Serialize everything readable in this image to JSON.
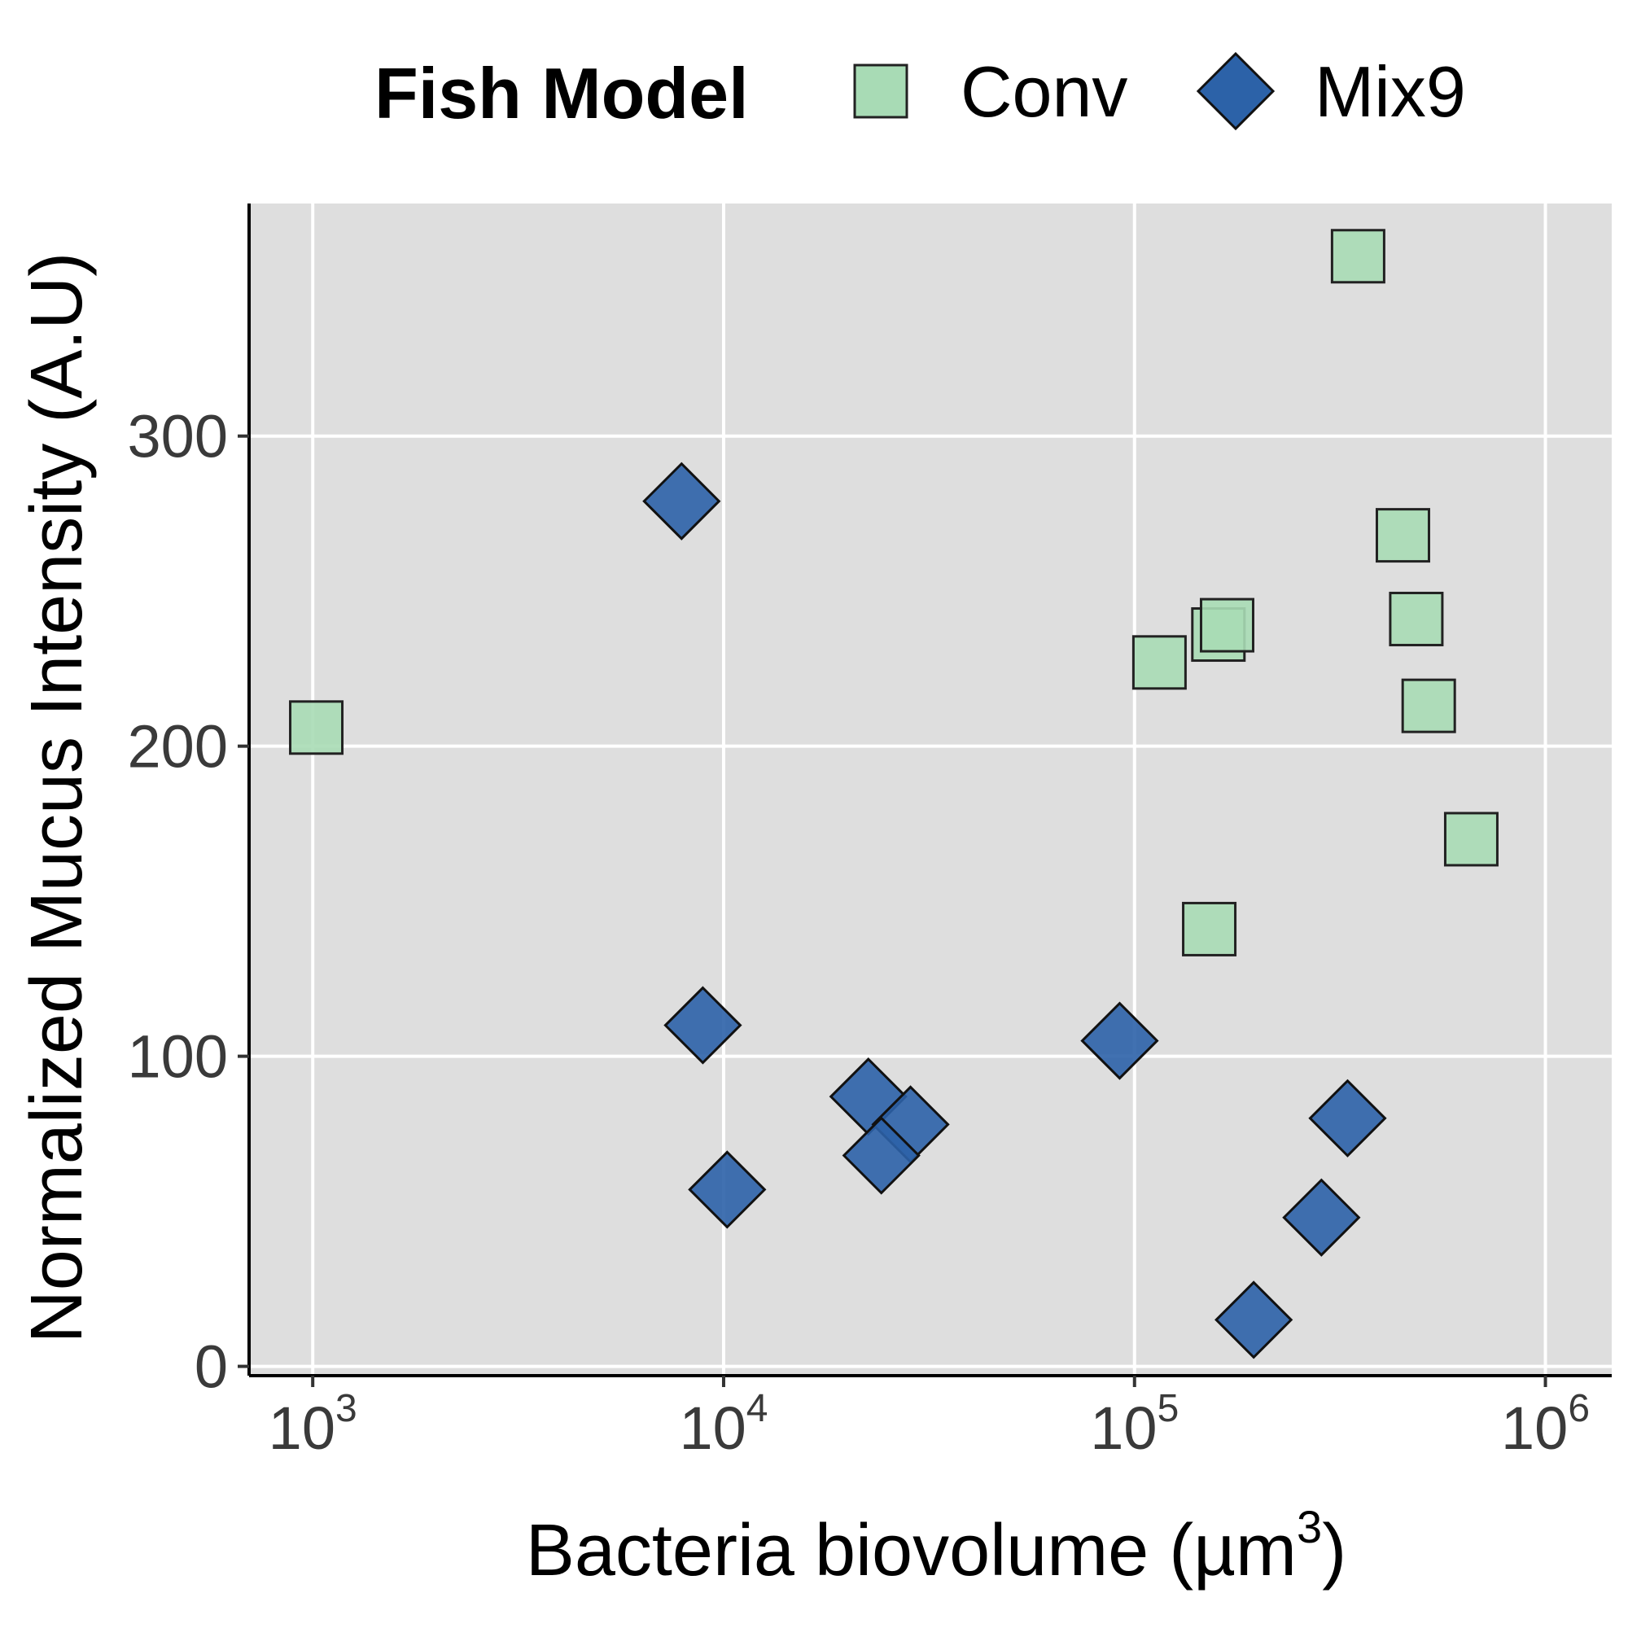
{
  "chart_data": {
    "type": "scatter",
    "xlabel": "Bacteria biovolume (µm",
    "xlabel_sup": "3",
    "xlabel_close": ")",
    "ylabel": "Normalized Mucus Intensity (A.U)",
    "x_scale": "log10",
    "xlim": [
      700,
      1450000
    ],
    "ylim": [
      -3,
      375
    ],
    "x_ticks": [
      {
        "value": 1000,
        "base": "10",
        "exp": "3"
      },
      {
        "value": 10000,
        "base": "10",
        "exp": "4"
      },
      {
        "value": 100000,
        "base": "10",
        "exp": "5"
      },
      {
        "value": 1000000,
        "base": "10",
        "exp": "6"
      }
    ],
    "y_ticks": [
      {
        "value": 0,
        "label": "0"
      },
      {
        "value": 100,
        "label": "100"
      },
      {
        "value": 200,
        "label": "200"
      },
      {
        "value": 300,
        "label": "300"
      }
    ],
    "grid": true,
    "background": "#dedede",
    "legend": {
      "title": "Fish Model",
      "position": "top"
    },
    "series": [
      {
        "name": "Conv",
        "marker": "square",
        "color": "#a8dbb5",
        "points": [
          {
            "x": 1020,
            "y": 206
          },
          {
            "x": 115000,
            "y": 227
          },
          {
            "x": 160000,
            "y": 236
          },
          {
            "x": 168000,
            "y": 239
          },
          {
            "x": 350000,
            "y": 358
          },
          {
            "x": 450000,
            "y": 268
          },
          {
            "x": 485000,
            "y": 241
          },
          {
            "x": 520000,
            "y": 213
          },
          {
            "x": 660000,
            "y": 170
          },
          {
            "x": 152000,
            "y": 141
          }
        ]
      },
      {
        "name": "Mix9",
        "marker": "diamond",
        "color": "#2c62a8",
        "points": [
          {
            "x": 7900,
            "y": 279
          },
          {
            "x": 8900,
            "y": 110
          },
          {
            "x": 10200,
            "y": 57
          },
          {
            "x": 22500,
            "y": 87
          },
          {
            "x": 28500,
            "y": 78
          },
          {
            "x": 24200,
            "y": 68
          },
          {
            "x": 92000,
            "y": 105
          },
          {
            "x": 330000,
            "y": 80
          },
          {
            "x": 285000,
            "y": 48
          },
          {
            "x": 195000,
            "y": 15
          }
        ]
      }
    ]
  }
}
